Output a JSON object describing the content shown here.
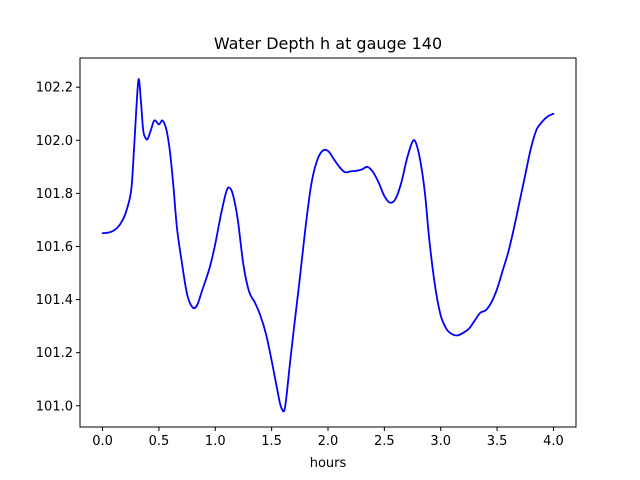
{
  "chart_data": {
    "type": "line",
    "title": "Water Depth h at gauge 140",
    "xlabel": "hours",
    "ylabel": "",
    "xlim": [
      -0.2,
      4.2
    ],
    "ylim": [
      100.92,
      102.31
    ],
    "x_ticks": [
      0.0,
      0.5,
      1.0,
      1.5,
      2.0,
      2.5,
      3.0,
      3.5,
      4.0
    ],
    "x_tick_labels": [
      "0.0",
      "0.5",
      "1.0",
      "1.5",
      "2.0",
      "2.5",
      "3.0",
      "3.5",
      "4.0"
    ],
    "y_ticks": [
      101.0,
      101.2,
      101.4,
      101.6,
      101.8,
      102.0,
      102.2
    ],
    "y_tick_labels": [
      "101.0",
      "101.2",
      "101.4",
      "101.6",
      "101.8",
      "102.0",
      "102.2"
    ],
    "grid": false,
    "series": [
      {
        "color": "#0000ff",
        "x": [
          0.0,
          0.05,
          0.1,
          0.15,
          0.2,
          0.25,
          0.27,
          0.3,
          0.32,
          0.34,
          0.36,
          0.38,
          0.4,
          0.43,
          0.46,
          0.5,
          0.53,
          0.56,
          0.58,
          0.6,
          0.63,
          0.66,
          0.7,
          0.75,
          0.8,
          0.84,
          0.88,
          0.95,
          1.0,
          1.05,
          1.1,
          1.13,
          1.16,
          1.2,
          1.25,
          1.3,
          1.35,
          1.4,
          1.45,
          1.5,
          1.55,
          1.58,
          1.61,
          1.63,
          1.66,
          1.7,
          1.75,
          1.8,
          1.85,
          1.9,
          1.95,
          2.0,
          2.05,
          2.1,
          2.15,
          2.2,
          2.25,
          2.3,
          2.35,
          2.4,
          2.45,
          2.5,
          2.55,
          2.6,
          2.65,
          2.7,
          2.75,
          2.78,
          2.82,
          2.86,
          2.9,
          2.95,
          3.0,
          3.05,
          3.1,
          3.15,
          3.2,
          3.25,
          3.3,
          3.35,
          3.4,
          3.45,
          3.5,
          3.55,
          3.6,
          3.65,
          3.7,
          3.75,
          3.8,
          3.85,
          3.9,
          3.95,
          4.0
        ],
        "values": [
          101.65,
          101.652,
          101.66,
          101.68,
          101.72,
          101.8,
          101.9,
          102.12,
          102.23,
          102.15,
          102.04,
          102.01,
          102.005,
          102.04,
          102.075,
          102.06,
          102.075,
          102.05,
          102.01,
          101.95,
          101.82,
          101.67,
          101.55,
          101.42,
          101.37,
          101.38,
          101.43,
          101.52,
          101.61,
          101.72,
          101.81,
          101.82,
          101.79,
          101.7,
          101.53,
          101.43,
          101.39,
          101.34,
          101.27,
          101.17,
          101.06,
          101.0,
          100.98,
          101.03,
          101.15,
          101.3,
          101.48,
          101.67,
          101.83,
          101.92,
          101.96,
          101.96,
          101.93,
          101.9,
          101.88,
          101.883,
          101.885,
          101.89,
          101.9,
          101.88,
          101.84,
          101.79,
          101.765,
          101.78,
          101.84,
          101.93,
          101.995,
          101.99,
          101.92,
          101.8,
          101.62,
          101.45,
          101.34,
          101.29,
          101.27,
          101.265,
          101.275,
          101.29,
          101.32,
          101.35,
          101.36,
          101.39,
          101.44,
          101.51,
          101.58,
          101.67,
          101.77,
          101.87,
          101.97,
          102.04,
          102.07,
          102.09,
          102.1
        ]
      }
    ]
  }
}
